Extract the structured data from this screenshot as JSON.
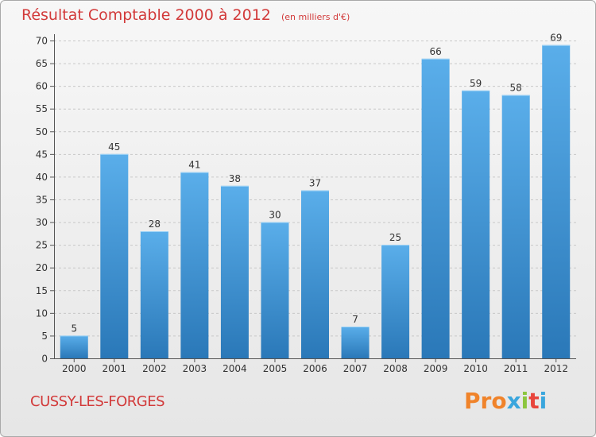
{
  "title": "Résultat Comptable 2000 à 2012",
  "unit": "(en milliers d'€)",
  "commune": "CUSSY-LES-FORGES",
  "logo": "Proxiti",
  "colors": {
    "title": "#d23a3a",
    "bar_top": "#5aaeea",
    "bar_bottom": "#2a78b8",
    "logo_letters": [
      "#f0832a",
      "#f0832a",
      "#f0832a",
      "#3aa6dd",
      "#8cc63f",
      "#e8453c",
      "#3aa6dd"
    ]
  },
  "chart_data": {
    "type": "bar",
    "categories": [
      "2000",
      "2001",
      "2002",
      "2003",
      "2004",
      "2005",
      "2006",
      "2007",
      "2008",
      "2009",
      "2010",
      "2011",
      "2012"
    ],
    "values": [
      5,
      45,
      28,
      41,
      38,
      30,
      37,
      7,
      25,
      66,
      59,
      58,
      69
    ],
    "ylim": [
      0,
      70
    ],
    "yticks": [
      0,
      5,
      10,
      15,
      20,
      25,
      30,
      35,
      40,
      45,
      50,
      55,
      60,
      65,
      70
    ],
    "grid": true
  }
}
